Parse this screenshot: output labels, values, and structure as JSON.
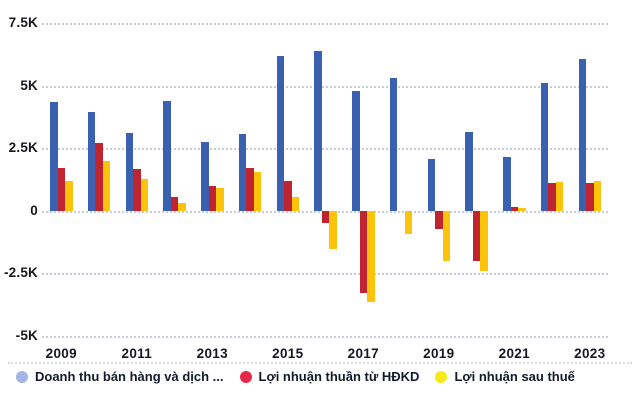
{
  "colors": {
    "background": "#FFFFFF",
    "grid": "#C6CCD8",
    "axis_text": "#16181D",
    "legend_text": "#121A2B"
  },
  "chart_data": {
    "type": "bar",
    "title": "",
    "xlabel": "",
    "ylabel": "",
    "unit": "K",
    "ylim": [
      -5,
      7.5
    ],
    "grid": "horizontal-dotted",
    "legend_position": "bottom",
    "categories": [
      "2009",
      "2010",
      "2011",
      "2012",
      "2013",
      "2014",
      "2015",
      "2016",
      "2017",
      "2018",
      "2019",
      "2020",
      "2021",
      "2022",
      "2023"
    ],
    "x_tick_labels": [
      "2009",
      "2011",
      "2013",
      "2015",
      "2017",
      "2019",
      "2021",
      "2023"
    ],
    "y_ticks": [
      {
        "label": "7.5K",
        "value": 7.5
      },
      {
        "label": "5K",
        "value": 5
      },
      {
        "label": "2.5K",
        "value": 2.5
      },
      {
        "label": "0",
        "value": 0
      },
      {
        "label": "-2.5K",
        "value": -2.5
      },
      {
        "label": "-5K",
        "value": -5
      }
    ],
    "series": [
      {
        "name": "Doanh thu bán hàng và dịch ...",
        "bar_color": "#3A61B0",
        "legend_color": "#A3B5E4",
        "values": [
          4.35,
          3.95,
          3.1,
          4.4,
          2.75,
          3.05,
          6.2,
          6.4,
          4.8,
          5.3,
          2.05,
          3.15,
          2.15,
          5.1,
          6.05
        ]
      },
      {
        "name": "Lợi nhuận thuần từ HĐKD",
        "bar_color": "#C02431",
        "legend_color": "#E7284A",
        "values": [
          1.7,
          2.7,
          1.65,
          0.55,
          1.0,
          1.7,
          1.2,
          -0.5,
          -3.3,
          0,
          -0.75,
          -2.0,
          0.15,
          1.1,
          1.1
        ]
      },
      {
        "name": "Lợi nhuận sau thuế",
        "bar_color": "#FBC40B",
        "legend_color": "#F7EA12",
        "values": [
          1.2,
          2.0,
          1.25,
          0.3,
          0.9,
          1.55,
          0.55,
          -1.55,
          -3.65,
          -0.95,
          -2.0,
          -2.4,
          0.1,
          1.15,
          1.2
        ]
      }
    ]
  }
}
